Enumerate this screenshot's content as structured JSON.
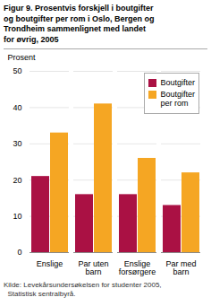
{
  "chart_data": {
    "type": "bar",
    "title": "Figur 9. Prosentvis forskjell i boutgifter\nog boutgifter per rom i Oslo, Bergen og\nTrondheim sammenlignet med landet\nfor øvrig, 2005",
    "ylabel": "Prosent",
    "categories": [
      "Enslige",
      "Par uten\nbarn",
      "Enslige\nforsørgere",
      "Par med\nbarn"
    ],
    "series": [
      {
        "name": "Boutgifter",
        "color": "#AA1144",
        "values": [
          21,
          16,
          16,
          13
        ]
      },
      {
        "name": "Boutgifter\nper rom",
        "color": "#F5A623",
        "values": [
          33,
          41,
          26,
          22
        ]
      }
    ],
    "ylim": [
      0,
      50
    ],
    "yticks": [
      0,
      10,
      20,
      30,
      40,
      50
    ],
    "grid": true,
    "legend": "upper right",
    "source": "Kilde: Levekårsundersøkelsen for studenter 2005,\n  Statistisk sentralbyrå."
  }
}
